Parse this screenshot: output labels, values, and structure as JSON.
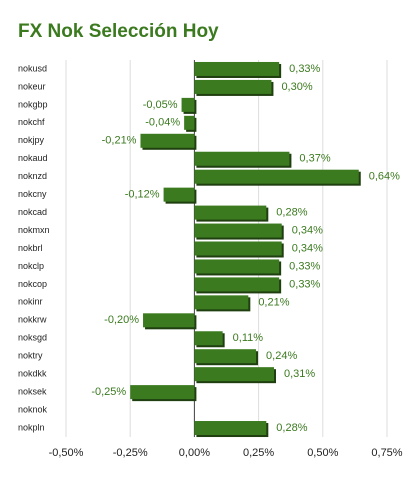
{
  "chart_data": {
    "type": "hbar",
    "title": "FX Nok Selección Hoy",
    "categories": [
      "nokusd",
      "nokeur",
      "nokgbp",
      "nokchf",
      "nokjpy",
      "nokaud",
      "noknzd",
      "nokcny",
      "nokcad",
      "nokmxn",
      "nokbrl",
      "nokclp",
      "nokcop",
      "nokinr",
      "nokkrw",
      "noksgd",
      "noktry",
      "nokdkk",
      "noksek",
      "noknok",
      "nokpln"
    ],
    "values": [
      0.33,
      0.3,
      -0.05,
      -0.04,
      -0.21,
      0.37,
      0.64,
      -0.12,
      0.28,
      0.34,
      0.34,
      0.33,
      0.33,
      0.21,
      -0.2,
      0.11,
      0.24,
      0.31,
      -0.25,
      null,
      0.28
    ],
    "value_labels": [
      "0,33%",
      "0,30%",
      "-0,05%",
      "-0,04%",
      "-0,21%",
      "0,37%",
      "0,64%",
      "-0,12%",
      "0,28%",
      "0,34%",
      "0,34%",
      "0,33%",
      "0,33%",
      "0,21%",
      "-0,20%",
      "0,11%",
      "0,24%",
      "0,31%",
      "-0,25%",
      null,
      "0,28%"
    ],
    "color": "#3b7a1f",
    "xlim": [
      -0.5,
      0.75
    ],
    "xticks": [
      {
        "value": -0.5,
        "label": "-0,50%"
      },
      {
        "value": -0.25,
        "label": "-0,25%"
      },
      {
        "value": 0,
        "label": "0,00%"
      },
      {
        "value": 0.25,
        "label": "0,25%"
      },
      {
        "value": 0.5,
        "label": "0,50%"
      },
      {
        "value": 0.75,
        "label": "0,75%"
      }
    ],
    "grid": true
  }
}
